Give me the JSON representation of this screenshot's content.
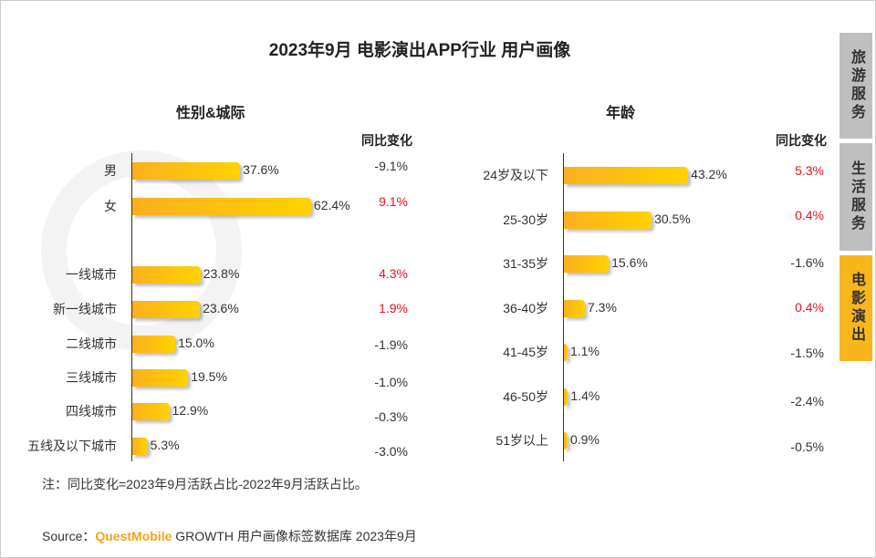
{
  "title": "2023年9月 电影演出APP行业 用户画像",
  "watermark": "QUESTMOBILE",
  "sidebar": {
    "tabs": [
      {
        "label": "旅游服务",
        "active": false
      },
      {
        "label": "生活服务",
        "active": false
      },
      {
        "label": "电影演出",
        "active": true
      }
    ]
  },
  "colors": {
    "bar_start": "#fbb01f",
    "bar_end": "#ffd200",
    "positive_change": "#e8141e",
    "negative_change": "#333333",
    "tab_active": "#f9b51c",
    "tab_inactive": "#bfbfbf"
  },
  "chart_data": [
    {
      "type": "bar",
      "orientation": "horizontal",
      "title": "性别&城际",
      "change_header": "同比变化",
      "categories": [
        "男",
        "女",
        "一线城市",
        "新一线城市",
        "二线城市",
        "三线城市",
        "四线城市",
        "五线及以下城市"
      ],
      "values": [
        37.6,
        62.4,
        23.8,
        23.6,
        15.0,
        19.5,
        12.9,
        5.3
      ],
      "value_labels": [
        "37.6%",
        "62.4%",
        "23.8%",
        "23.6%",
        "15.0%",
        "19.5%",
        "12.9%",
        "5.3%"
      ],
      "changes": [
        "-9.1%",
        "9.1%",
        "4.3%",
        "1.9%",
        "-1.9%",
        "-1.0%",
        "-0.3%",
        "-3.0%"
      ]
    },
    {
      "type": "bar",
      "orientation": "horizontal",
      "title": "年龄",
      "change_header": "同比变化",
      "categories": [
        "24岁及以下",
        "25-30岁",
        "31-35岁",
        "36-40岁",
        "41-45岁",
        "46-50岁",
        "51岁以上"
      ],
      "values": [
        43.2,
        30.5,
        15.6,
        7.3,
        1.1,
        1.4,
        0.9
      ],
      "value_labels": [
        "43.2%",
        "30.5%",
        "15.6%",
        "7.3%",
        "1.1%",
        "1.4%",
        "0.9%"
      ],
      "changes": [
        "5.3%",
        "0.4%",
        "-1.6%",
        "0.4%",
        "-1.5%",
        "-2.4%",
        "-0.5%"
      ]
    }
  ],
  "note": "注：同比变化=2023年9月活跃占比-2022年9月活跃占比。",
  "source": {
    "prefix": "Source：",
    "brand": "QuestMobile",
    "rest": "GROWTH 用户画像标签数据库 2023年9月"
  }
}
